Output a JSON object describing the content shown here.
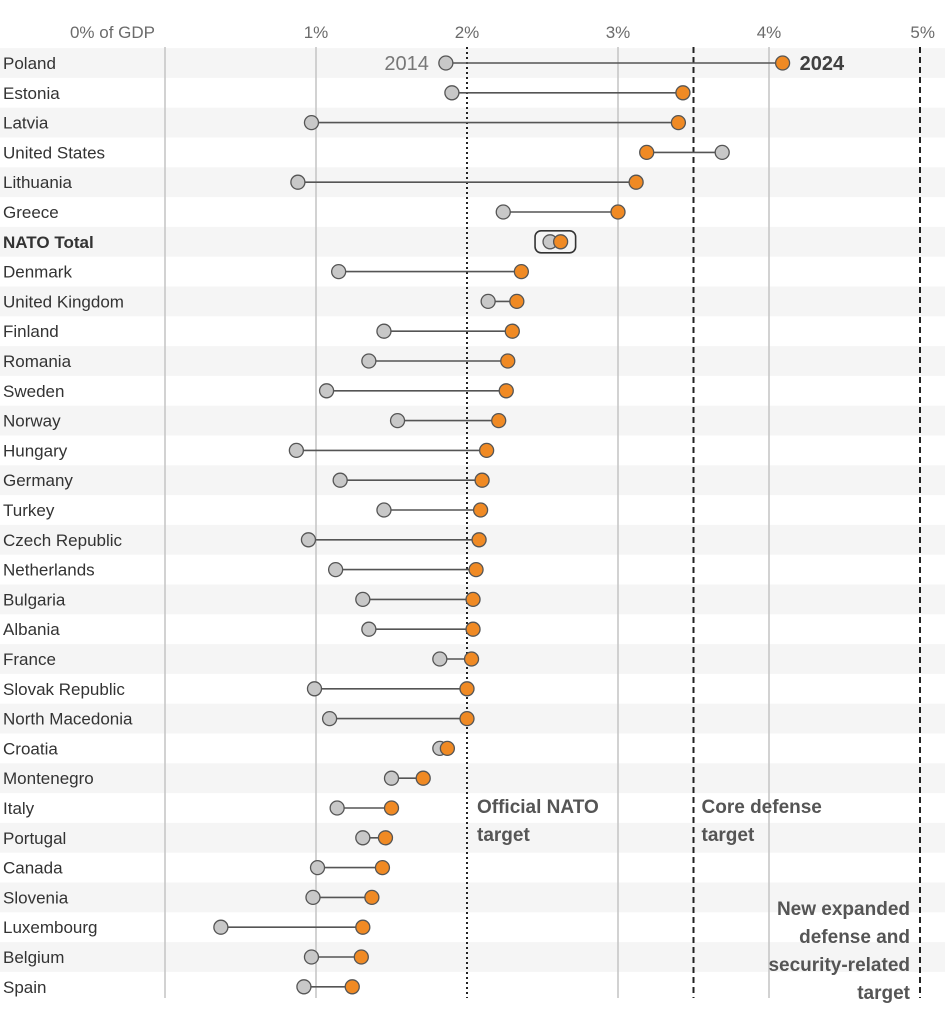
{
  "chart_data": {
    "type": "dumbbell",
    "x_ticks": [
      {
        "value": 0,
        "label": "0% of GDP"
      },
      {
        "value": 1,
        "label": "1%"
      },
      {
        "value": 2,
        "label": "2%"
      },
      {
        "value": 3,
        "label": "3%"
      },
      {
        "value": 4,
        "label": "4%"
      },
      {
        "value": 5,
        "label": "5%"
      }
    ],
    "xlim": [
      0,
      5
    ],
    "grid": true,
    "years": {
      "start": "2014",
      "end": "2024"
    },
    "colors": {
      "start": "#c8c8c8",
      "end": "#f08a24",
      "line": "#555555",
      "band": "#f5f5f5"
    },
    "targets": [
      {
        "value": 2.0,
        "style": "dotted",
        "label_lines": [
          "Official NATO",
          "target"
        ]
      },
      {
        "value": 3.5,
        "style": "dashed",
        "label_lines": [
          "Core defense",
          "target"
        ]
      },
      {
        "value": 5.0,
        "style": "dashed",
        "label_lines": [
          "New expanded",
          "defense and",
          "security-related",
          "target"
        ]
      }
    ],
    "rows": [
      {
        "country": "Poland",
        "v2014": 1.86,
        "v2024": 4.09
      },
      {
        "country": "Estonia",
        "v2014": 1.9,
        "v2024": 3.43
      },
      {
        "country": "Latvia",
        "v2014": 0.97,
        "v2024": 3.4
      },
      {
        "country": "United States",
        "v2014": 3.69,
        "v2024": 3.19
      },
      {
        "country": "Lithuania",
        "v2014": 0.88,
        "v2024": 3.12
      },
      {
        "country": "Greece",
        "v2014": 2.24,
        "v2024": 3.0
      },
      {
        "country": "NATO Total",
        "v2014": 2.55,
        "v2024": 2.62,
        "bold": true
      },
      {
        "country": "Denmark",
        "v2014": 1.15,
        "v2024": 2.36
      },
      {
        "country": "United Kingdom",
        "v2014": 2.14,
        "v2024": 2.33
      },
      {
        "country": "Finland",
        "v2014": 1.45,
        "v2024": 2.3
      },
      {
        "country": "Romania",
        "v2014": 1.35,
        "v2024": 2.27
      },
      {
        "country": "Sweden",
        "v2014": 1.07,
        "v2024": 2.26
      },
      {
        "country": "Norway",
        "v2014": 1.54,
        "v2024": 2.21
      },
      {
        "country": "Hungary",
        "v2014": 0.87,
        "v2024": 2.13
      },
      {
        "country": "Germany",
        "v2014": 1.16,
        "v2024": 2.1
      },
      {
        "country": "Turkey",
        "v2014": 1.45,
        "v2024": 2.09
      },
      {
        "country": "Czech Republic",
        "v2014": 0.95,
        "v2024": 2.08
      },
      {
        "country": "Netherlands",
        "v2014": 1.13,
        "v2024": 2.06
      },
      {
        "country": "Bulgaria",
        "v2014": 1.31,
        "v2024": 2.04
      },
      {
        "country": "Albania",
        "v2014": 1.35,
        "v2024": 2.04
      },
      {
        "country": "France",
        "v2014": 1.82,
        "v2024": 2.03
      },
      {
        "country": "Slovak Republic",
        "v2014": 0.99,
        "v2024": 2.0
      },
      {
        "country": "North Macedonia",
        "v2014": 1.09,
        "v2024": 2.0
      },
      {
        "country": "Croatia",
        "v2014": 1.82,
        "v2024": 1.87
      },
      {
        "country": "Montenegro",
        "v2014": 1.5,
        "v2024": 1.71
      },
      {
        "country": "Italy",
        "v2014": 1.14,
        "v2024": 1.5
      },
      {
        "country": "Portugal",
        "v2014": 1.31,
        "v2024": 1.46
      },
      {
        "country": "Canada",
        "v2014": 1.01,
        "v2024": 1.44
      },
      {
        "country": "Slovenia",
        "v2014": 0.98,
        "v2024": 1.37
      },
      {
        "country": "Luxembourg",
        "v2014": 0.37,
        "v2024": 1.31
      },
      {
        "country": "Belgium",
        "v2014": 0.97,
        "v2024": 1.3
      },
      {
        "country": "Spain",
        "v2014": 0.92,
        "v2024": 1.24
      }
    ]
  }
}
